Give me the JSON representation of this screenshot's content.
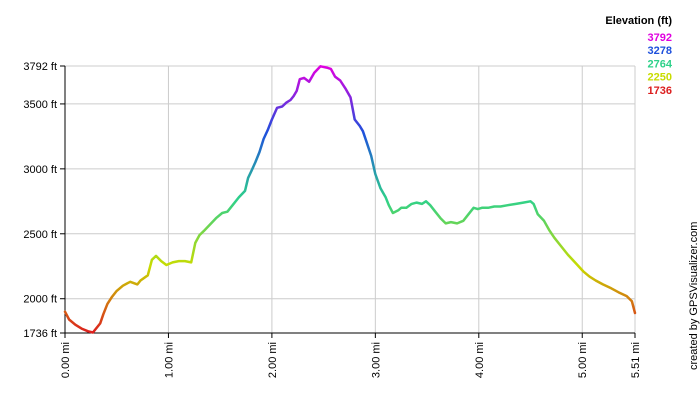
{
  "chart_data": {
    "type": "line",
    "title": "",
    "xlabel": "",
    "ylabel": "",
    "xlim": [
      0,
      5.51
    ],
    "ylim": [
      1736,
      3792
    ],
    "x_tick_labels": [
      {
        "value": 0,
        "label": "0.00 mi"
      },
      {
        "value": 1,
        "label": "1.00 mi"
      },
      {
        "value": 2,
        "label": "2.00 mi"
      },
      {
        "value": 3,
        "label": "3.00 mi"
      },
      {
        "value": 4,
        "label": "4.00 mi"
      },
      {
        "value": 5,
        "label": "5.00 mi"
      },
      {
        "value": 5.51,
        "label": "5.51 mi"
      }
    ],
    "y_tick_labels": [
      {
        "value": 1736,
        "label": "1736 ft"
      },
      {
        "value": 2000,
        "label": "2000 ft"
      },
      {
        "value": 2500,
        "label": "2500 ft"
      },
      {
        "value": 3000,
        "label": "3000 ft"
      },
      {
        "value": 3500,
        "label": "3500 ft"
      },
      {
        "value": 3792,
        "label": "3792 ft"
      }
    ],
    "grid": true,
    "legend": {
      "title": "Elevation (ft)",
      "placement": "top-right",
      "entries": [
        {
          "label": "3792",
          "color": "#e000e0"
        },
        {
          "label": "3278",
          "color": "#1e50dc"
        },
        {
          "label": "2764",
          "color": "#2ed18a"
        },
        {
          "label": "2250",
          "color": "#c8dc00"
        },
        {
          "label": "1736",
          "color": "#dc1e1e"
        }
      ]
    },
    "series": [
      {
        "color_scale": [
          "#dc1e1e",
          "#c8dc00",
          "#2ed18a",
          "#1e50dc",
          "#e000e0"
        ],
        "x": [
          0.0,
          0.04,
          0.1,
          0.16,
          0.22,
          0.27,
          0.3,
          0.34,
          0.37,
          0.41,
          0.45,
          0.5,
          0.56,
          0.63,
          0.7,
          0.73,
          0.8,
          0.84,
          0.88,
          0.93,
          0.98,
          1.04,
          1.1,
          1.16,
          1.22,
          1.26,
          1.3,
          1.34,
          1.4,
          1.46,
          1.52,
          1.57,
          1.62,
          1.68,
          1.74,
          1.77,
          1.8,
          1.84,
          1.88,
          1.92,
          1.96,
          2.0,
          2.05,
          2.1,
          2.14,
          2.18,
          2.21,
          2.24,
          2.27,
          2.31,
          2.36,
          2.41,
          2.47,
          2.53,
          2.57,
          2.61,
          2.66,
          2.71,
          2.76,
          2.8,
          2.85,
          2.88,
          2.91,
          2.96,
          3.0,
          3.05,
          3.1,
          3.13,
          3.17,
          3.22,
          3.25,
          3.3,
          3.35,
          3.4,
          3.45,
          3.49,
          3.53,
          3.58,
          3.63,
          3.68,
          3.73,
          3.79,
          3.85,
          3.92,
          3.95,
          3.99,
          4.03,
          4.09,
          4.15,
          4.21,
          4.28,
          4.36,
          4.43,
          4.5,
          4.53,
          4.57,
          4.63,
          4.68,
          4.73,
          4.79,
          4.86,
          4.93,
          5.01,
          5.07,
          5.13,
          5.2,
          5.28,
          5.35,
          5.43,
          5.48,
          5.51
        ],
        "y": [
          1900,
          1840,
          1800,
          1770,
          1750,
          1740,
          1770,
          1810,
          1880,
          1960,
          2010,
          2060,
          2100,
          2130,
          2110,
          2140,
          2180,
          2300,
          2330,
          2290,
          2260,
          2280,
          2290,
          2290,
          2280,
          2430,
          2490,
          2520,
          2570,
          2620,
          2660,
          2670,
          2720,
          2780,
          2830,
          2930,
          2980,
          3050,
          3130,
          3230,
          3300,
          3380,
          3470,
          3480,
          3510,
          3530,
          3560,
          3600,
          3690,
          3700,
          3670,
          3740,
          3790,
          3780,
          3770,
          3710,
          3680,
          3620,
          3550,
          3380,
          3330,
          3290,
          3220,
          3100,
          2960,
          2850,
          2780,
          2720,
          2660,
          2680,
          2700,
          2700,
          2730,
          2740,
          2730,
          2750,
          2720,
          2670,
          2620,
          2580,
          2590,
          2580,
          2600,
          2670,
          2700,
          2690,
          2700,
          2700,
          2710,
          2710,
          2720,
          2730,
          2740,
          2750,
          2730,
          2650,
          2600,
          2530,
          2470,
          2410,
          2340,
          2280,
          2210,
          2170,
          2140,
          2110,
          2080,
          2050,
          2020,
          1980,
          1890
        ]
      }
    ]
  },
  "credit": "created by GPSVisualizer.com"
}
